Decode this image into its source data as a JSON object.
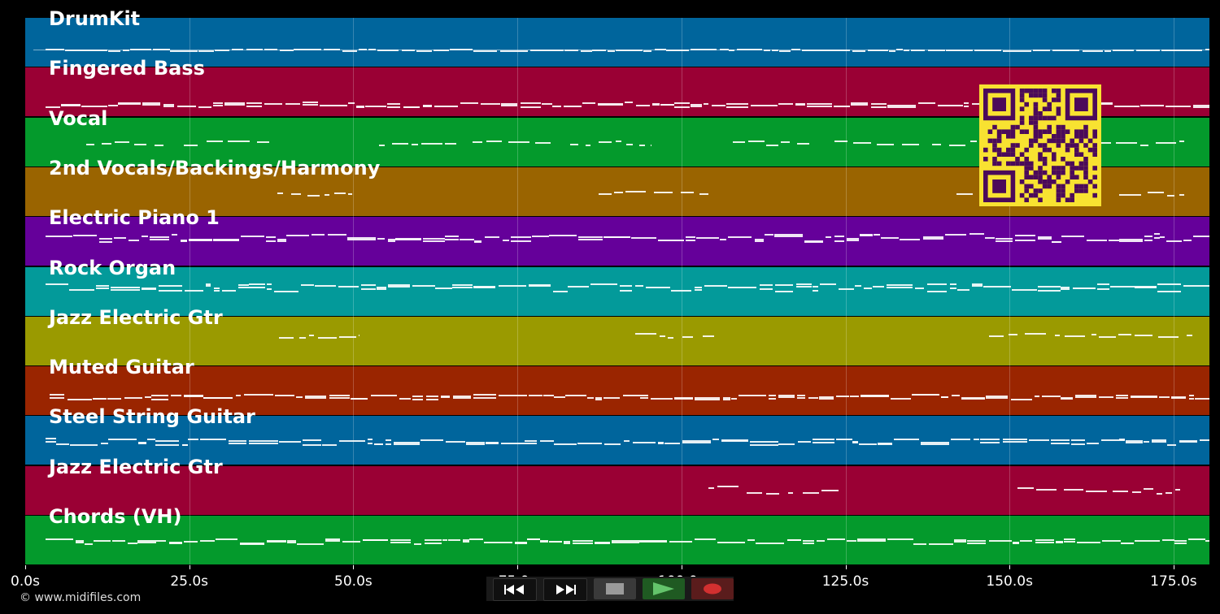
{
  "time_axis": {
    "ticks": [
      "0.0s",
      "25.0s",
      "50.0s",
      "75.0s",
      "100.0s",
      "125.0s",
      "150.0s",
      "175.0s"
    ]
  },
  "tracks": [
    {
      "name": "DrumKit",
      "color": "#00659c"
    },
    {
      "name": "Fingered Bass",
      "color": "#9a0034"
    },
    {
      "name": "Vocal",
      "color": "#049a2c"
    },
    {
      "name": "2nd Vocals/Backings/Harmony",
      "color": "#9a6400"
    },
    {
      "name": "Electric Piano 1",
      "color": "#65009a"
    },
    {
      "name": "Rock Organ",
      "color": "#039a9a"
    },
    {
      "name": "Jazz Electric Gtr",
      "color": "#9a9a00"
    },
    {
      "name": "Muted Guitar",
      "color": "#9a2500"
    },
    {
      "name": "Steel String Guitar",
      "color": "#00659c"
    },
    {
      "name": "Jazz Electric Gtr",
      "color": "#9a0034"
    },
    {
      "name": "Chords (VH)",
      "color": "#049a2c"
    }
  ],
  "footer": {
    "copyright": "© www.midifiles.com"
  },
  "transport": {
    "rewind_icon": "rewind-icon",
    "fast_forward_icon": "fast-forward-icon",
    "stop_icon": "stop-icon",
    "play_icon": "play-icon",
    "record_icon": "record-icon"
  },
  "qr_code": {
    "color": "#f8e231",
    "module_color": "#4b0a5a"
  }
}
